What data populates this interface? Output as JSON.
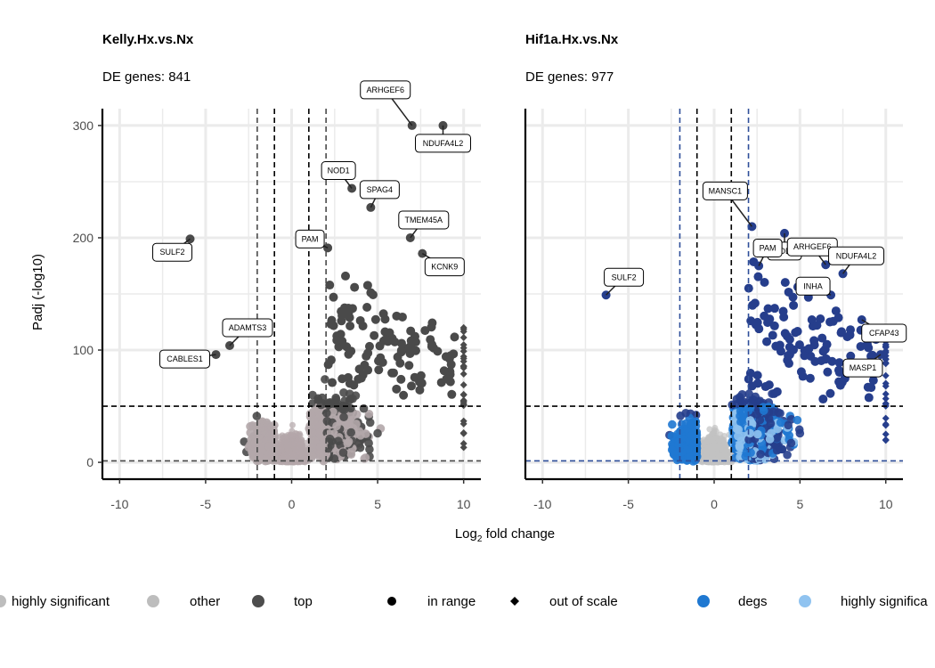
{
  "chart_data": [
    {
      "type": "scatter",
      "title": "Kelly.Hx.vs.Nx",
      "subtitle": "DE genes: 841",
      "xlabel": "Log2 fold change",
      "ylabel": "Padj (-log10)",
      "xlim": [
        -11,
        11
      ],
      "ylim": [
        -15,
        315
      ],
      "xticks": [
        -10,
        -5,
        0,
        5,
        10
      ],
      "yticks": [
        0,
        100,
        200,
        300
      ],
      "fc_thresholds": [
        -2,
        -1,
        1,
        2
      ],
      "p_thresholds": [
        50,
        1.3
      ],
      "scheme": "gray",
      "labeled_genes": [
        {
          "gene": "ARHGEF6",
          "x": 7.0,
          "y": 300
        },
        {
          "gene": "NDUFA4L2",
          "x": 8.8,
          "y": 300
        },
        {
          "gene": "NOD1",
          "x": 3.5,
          "y": 244
        },
        {
          "gene": "SPAG4",
          "x": 4.6,
          "y": 227
        },
        {
          "gene": "TMEM45A",
          "x": 6.9,
          "y": 200
        },
        {
          "gene": "PAM",
          "x": 2.1,
          "y": 191
        },
        {
          "gene": "KCNK9",
          "x": 7.6,
          "y": 186
        },
        {
          "gene": "SULF2",
          "x": -5.9,
          "y": 199
        },
        {
          "gene": "ADAMTS3",
          "x": -3.6,
          "y": 104
        },
        {
          "gene": "CABLES1",
          "x": -4.4,
          "y": 96
        }
      ]
    },
    {
      "type": "scatter",
      "title": "Hif1a.Hx.vs.Nx",
      "subtitle": "DE genes: 977",
      "xlabel": "Log2 fold change",
      "ylabel": "Padj (-log10)",
      "xlim": [
        -11,
        11
      ],
      "ylim": [
        -15,
        315
      ],
      "xticks": [
        -10,
        -5,
        0,
        5,
        10
      ],
      "yticks": [
        0,
        100,
        200,
        300
      ],
      "fc_thresholds": [
        -2,
        -1,
        1,
        2
      ],
      "p_thresholds": [
        50,
        1.3
      ],
      "scheme": "blue",
      "labeled_genes": [
        {
          "gene": "MANSC1",
          "x": 2.2,
          "y": 210
        },
        {
          "gene": "NOD1",
          "x": 4.1,
          "y": 204
        },
        {
          "gene": "ARHGEF6",
          "x": 6.5,
          "y": 176
        },
        {
          "gene": "PAM",
          "x": 2.6,
          "y": 175
        },
        {
          "gene": "NDUFA4L2",
          "x": 7.5,
          "y": 168
        },
        {
          "gene": "INHA",
          "x": 6.8,
          "y": 149
        },
        {
          "gene": "CFAP43",
          "x": 8.6,
          "y": 127
        },
        {
          "gene": "MASP1",
          "x": 9.7,
          "y": 96
        },
        {
          "gene": "SULF2",
          "x": -6.3,
          "y": 149
        }
      ]
    }
  ],
  "legend": [
    {
      "label": "highly significant",
      "symbol": "circle",
      "color": "#bdbdbd"
    },
    {
      "label": "other",
      "symbol": "circle",
      "color": "#4d4d4d"
    },
    {
      "label": "top",
      "symbol": "none",
      "color": ""
    },
    {
      "label": "in range",
      "symbol": "circle",
      "color": "#000000"
    },
    {
      "label": "out of scale",
      "symbol": "diamond",
      "color": "#000000"
    },
    {
      "label": "degs",
      "symbol": "circle",
      "color": "#1f78d1"
    },
    {
      "label": "highly significa",
      "symbol": "circle",
      "color": "#90c3f0"
    }
  ],
  "colors": {
    "gray_other": "#b3a7aa",
    "gray_top": "#4a4a4a",
    "blue_other": "#c2c2c2",
    "blue_degs": "#1f78d1",
    "blue_highsig": "#8fc2ee",
    "blue_top": "#263e8c",
    "guide_blue": "#2f4f9a",
    "grid": "#ebebeb"
  }
}
